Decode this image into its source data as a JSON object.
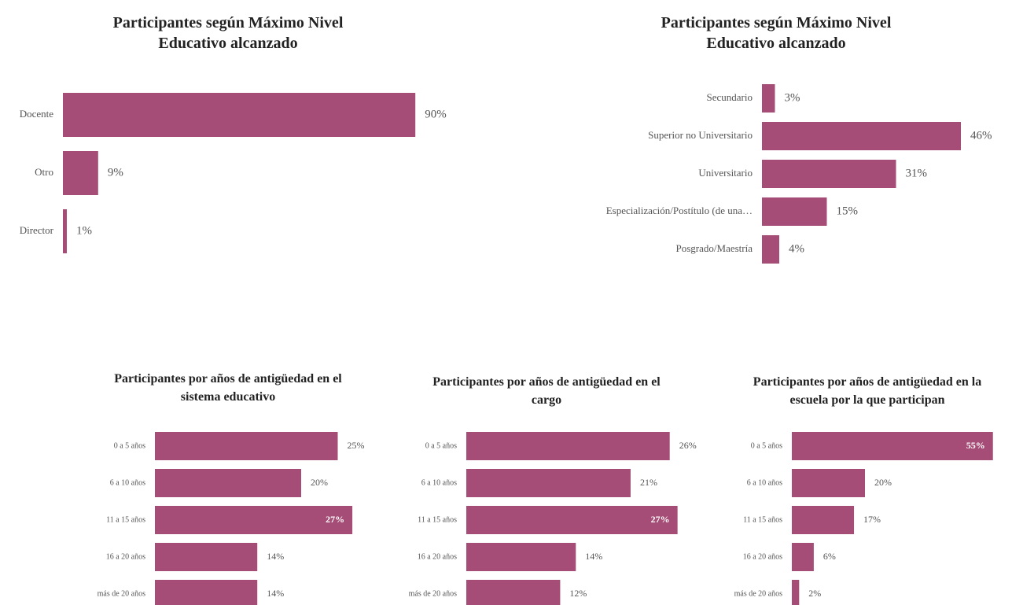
{
  "chart_data": [
    {
      "type": "hbar",
      "title": "Participantes según Máximo Nivel Educativo alcanzado",
      "categories": [
        "Docente",
        "Otro",
        "Director"
      ],
      "values": [
        90,
        9,
        1
      ],
      "value_labels": [
        "90%",
        "9%",
        "1%"
      ],
      "color": "#a54d76"
    },
    {
      "type": "hbar",
      "title": "Participantes según Máximo Nivel Educativo alcanzado",
      "categories": [
        "Secundario",
        "Superior no Universitario",
        "Universitario",
        "Especialización/Postítulo (de una…",
        "Posgrado/Maestría"
      ],
      "values": [
        3,
        46,
        31,
        15,
        4
      ],
      "value_labels": [
        "3%",
        "46%",
        "31%",
        "15%",
        "4%"
      ],
      "color": "#a54d76"
    },
    {
      "type": "hbar",
      "title": "Participantes por años de antigüedad en el sistema educativo",
      "categories": [
        "0 a 5 años",
        "6 a 10 años",
        "11 a 15 años",
        "16 a 20 años",
        "más de 20 años"
      ],
      "values": [
        25,
        20,
        27,
        14,
        14
      ],
      "value_labels": [
        "25%",
        "20%",
        "27%",
        "14%",
        "14%"
      ],
      "color": "#a54d76"
    },
    {
      "type": "hbar",
      "title": "Participantes por años de antigüedad en el cargo",
      "categories": [
        "0 a 5 años",
        "6 a 10 años",
        "11 a 15 años",
        "16 a 20 años",
        "más de 20 años"
      ],
      "values": [
        26,
        21,
        27,
        14,
        12
      ],
      "value_labels": [
        "26%",
        "21%",
        "27%",
        "14%",
        "12%"
      ],
      "color": "#a54d76"
    },
    {
      "type": "hbar",
      "title": "Participantes por años de antigüedad en la escuela por la que participan",
      "categories": [
        "0 a 5 años",
        "6 a 10 años",
        "11 a 15 años",
        "16 a 20 años",
        "más de 20 años"
      ],
      "values": [
        55,
        20,
        17,
        6,
        2
      ],
      "value_labels": [
        "55%",
        "20%",
        "17%",
        "6%",
        "2%"
      ],
      "color": "#a54d76"
    }
  ]
}
